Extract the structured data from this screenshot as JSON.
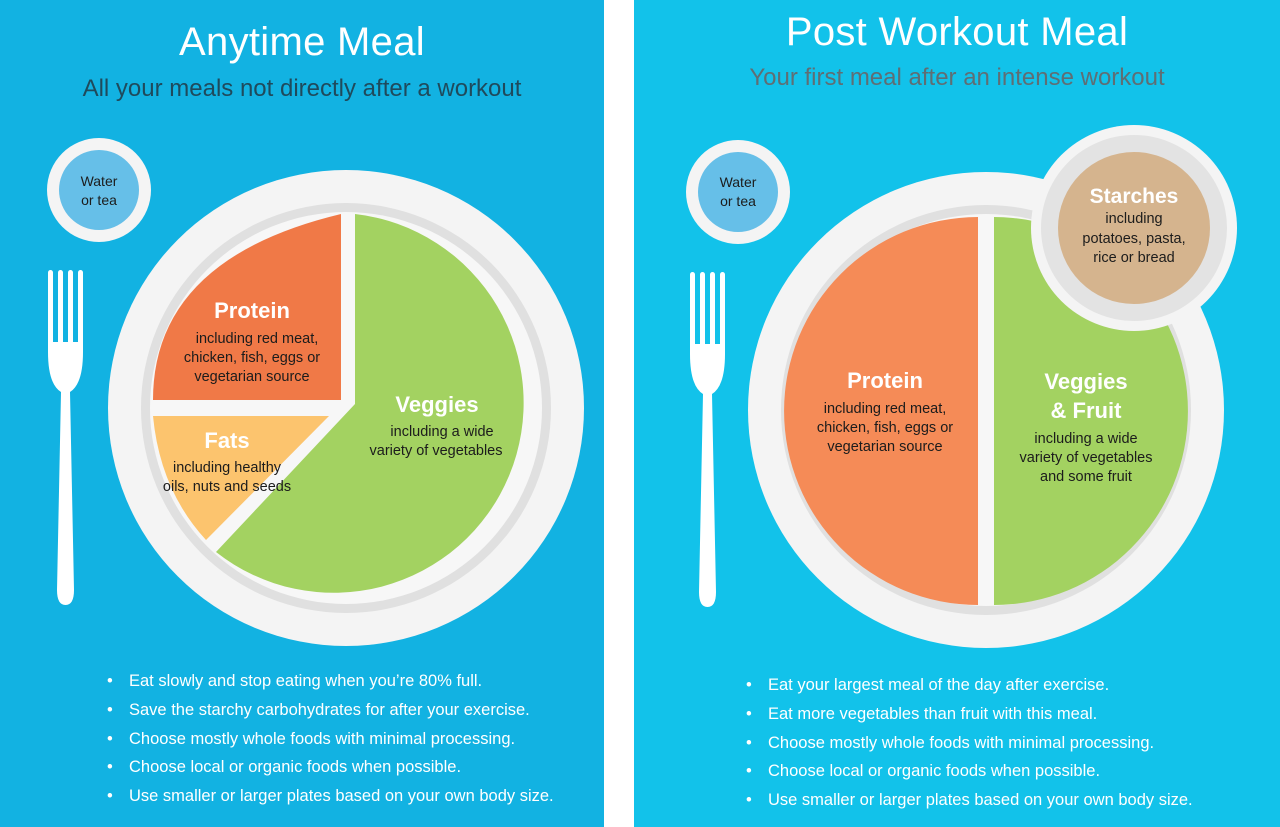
{
  "left": {
    "title": "Anytime Meal",
    "subtitle": "All your meals not directly after a workout",
    "water": [
      "Water",
      "or tea"
    ],
    "protein": {
      "title": "Protein",
      "lines": [
        "including red meat,",
        "chicken, fish, eggs or",
        "vegetarian source"
      ]
    },
    "fats": {
      "title": "Fats",
      "lines": [
        "including healthy",
        "oils, nuts and seeds"
      ]
    },
    "veggies": {
      "title": "Veggies",
      "lines": [
        "including a wide",
        "variety of vegetables"
      ]
    },
    "bullets": [
      "Eat slowly and stop eating when you’re 80% full.",
      "Save the starchy carbohydrates for after your exercise.",
      "Choose mostly whole foods with minimal processing.",
      "Choose local or organic foods when possible.",
      "Use smaller or larger plates based on your own body size."
    ]
  },
  "right": {
    "title": "Post Workout Meal",
    "subtitle": "Your first meal after an intense workout",
    "water": [
      "Water",
      "or tea"
    ],
    "starches": {
      "title": "Starches",
      "lines": [
        "including",
        "potatoes, pasta,",
        "rice or bread"
      ]
    },
    "protein": {
      "title": "Protein",
      "lines": [
        "including red meat,",
        "chicken, fish, eggs or",
        "vegetarian source"
      ]
    },
    "veggies": {
      "title": [
        "Veggies",
        "& Fruit"
      ],
      "lines": [
        "including a wide",
        "variety of vegetables",
        "and some fruit"
      ]
    },
    "bullets": [
      "Eat your largest meal of the day after exercise.",
      "Eat more vegetables than fruit with this meal.",
      "Choose mostly whole foods with minimal processing.",
      "Choose local or organic foods when possible.",
      "Use smaller or larger plates based on your own body size."
    ]
  },
  "colors": {
    "left_background": "#12b2e2",
    "right_background": "#12c2ea",
    "plate_rim": "#f4f4f4",
    "plate_inner": "#e0e0e0",
    "protein": "#f07947",
    "protein_post": "#f58b57",
    "fats": "#fcc46e",
    "veggies": "#a3d261",
    "starches": "#d5b48e",
    "water": "#66bfe8"
  },
  "icons": {
    "cutlery": "fork-icon"
  }
}
